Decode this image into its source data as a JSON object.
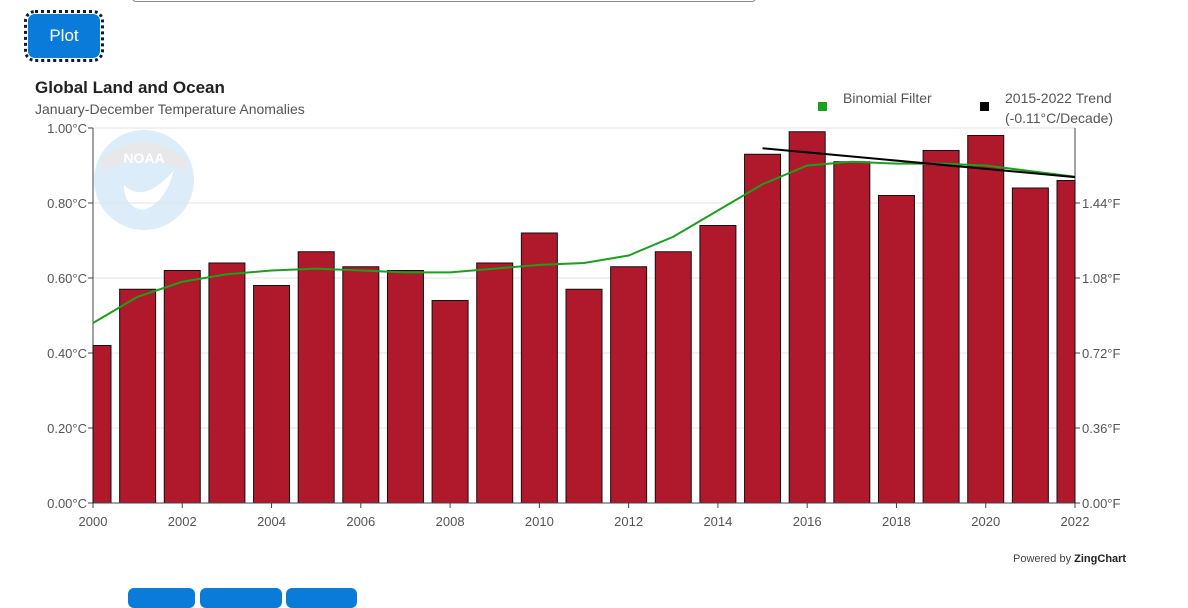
{
  "plot_button": {
    "label": "Plot"
  },
  "title": "Global Land and Ocean",
  "subtitle": "January-December Temperature Anomalies",
  "legend": {
    "binomial": "Binomial Filter",
    "trend_line1": "2015-2022 Trend",
    "trend_line2": "(-0.11°C/Decade)"
  },
  "logo_text": "NOAA",
  "powered_by": {
    "prefix": "Powered by",
    "brand": "ZingChart"
  },
  "colors": {
    "bar": "#b0182b",
    "bar_border": "#111111",
    "binomial": "#1aa11a",
    "trend": "#000000",
    "button": "#0a7bd8"
  },
  "chart_data": {
    "type": "bar",
    "categories": [
      "2000",
      "2001",
      "2002",
      "2003",
      "2004",
      "2005",
      "2006",
      "2007",
      "2008",
      "2009",
      "2010",
      "2011",
      "2012",
      "2013",
      "2014",
      "2015",
      "2016",
      "2017",
      "2018",
      "2019",
      "2020",
      "2021",
      "2022"
    ],
    "series": [
      {
        "values": [
          0.42,
          0.57,
          0.62,
          0.64,
          0.58,
          0.67,
          0.63,
          0.62,
          0.54,
          0.64,
          0.72,
          0.57,
          0.63,
          0.67,
          0.74,
          0.93,
          0.99,
          0.91,
          0.82,
          0.94,
          0.98,
          0.84,
          0.86
        ]
      },
      {
        "name": "Binomial Filter",
        "type": "line",
        "values": [
          0.48,
          0.55,
          0.59,
          0.61,
          0.62,
          0.625,
          0.62,
          0.615,
          0.615,
          0.625,
          0.635,
          0.64,
          0.66,
          0.71,
          0.78,
          0.85,
          0.9,
          0.91,
          0.905,
          0.905,
          0.9,
          0.885,
          0.87
        ]
      },
      {
        "name": "2015-2022 Trend (-0.11°C/Decade)",
        "type": "line",
        "x": [
          "2015",
          "2022"
        ],
        "values": [
          0.946,
          0.869
        ]
      }
    ],
    "x_ticks": [
      "2000",
      "2002",
      "2004",
      "2006",
      "2008",
      "2010",
      "2012",
      "2014",
      "2016",
      "2018",
      "2020",
      "2022"
    ],
    "ylim": [
      0,
      1.0
    ],
    "y_ticks_left": [
      "0.00°C",
      "0.20°C",
      "0.40°C",
      "0.60°C",
      "0.80°C",
      "1.00°C"
    ],
    "y_ticks_right": [
      "0.00°F",
      "0.36°F",
      "0.72°F",
      "1.08°F",
      "1.44°F"
    ],
    "grid": true,
    "legend_position": "top-right"
  }
}
